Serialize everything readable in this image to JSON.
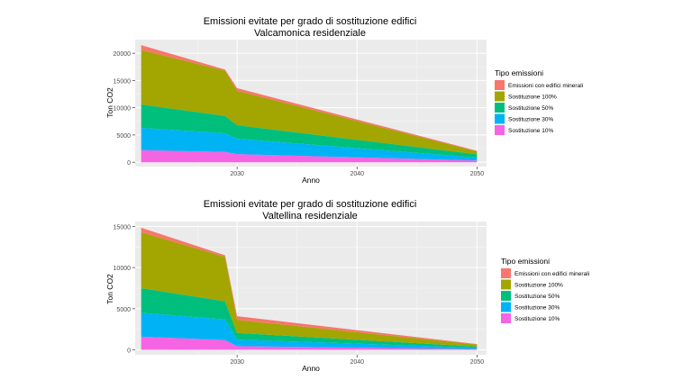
{
  "chart_data": [
    {
      "type": "area",
      "stacked": true,
      "title": "Emissioni evitate per grado di sostituzione edifici",
      "subtitle": "Valcamonica residenziale",
      "xlabel": "Anno",
      "ylabel": "Ton CO2",
      "xlim": [
        2021.5,
        2050.8
      ],
      "ylim": [
        -800,
        22500
      ],
      "x_ticks": [
        2030,
        2040,
        2050
      ],
      "y_ticks": [
        0,
        5000,
        10000,
        15000,
        20000
      ],
      "grid": true,
      "legend_title": "Tipo emissioni",
      "legend_position": "right",
      "x": [
        2022,
        2029,
        2030,
        2050
      ],
      "series": [
        {
          "name": "Sostituzione 10%",
          "color": "#F564E3",
          "values": [
            2200,
            1900,
            1500,
            300
          ]
        },
        {
          "name": "Sostituzione 30%",
          "color": "#00B3F5",
          "values": [
            4100,
            3400,
            2800,
            550
          ]
        },
        {
          "name": "Sostituzione 50%",
          "color": "#00BF7D",
          "values": [
            4300,
            3200,
            2500,
            600
          ]
        },
        {
          "name": "Sostituzione 100%",
          "color": "#A3A500",
          "values": [
            10000,
            8300,
            6300,
            550
          ]
        },
        {
          "name": "Emissioni con edifici minerali",
          "color": "#F8766D",
          "values": [
            900,
            200,
            500,
            100
          ]
        }
      ]
    },
    {
      "type": "area",
      "stacked": true,
      "title": "Emissioni evitate per grado di sostituzione edifici",
      "subtitle": "Valtellina residenziale",
      "xlabel": "Anno",
      "ylabel": "Ton CO2",
      "xlim": [
        2021.5,
        2050.8
      ],
      "ylim": [
        -600,
        15600
      ],
      "x_ticks": [
        2030,
        2040,
        2050
      ],
      "y_ticks": [
        0,
        5000,
        10000,
        15000
      ],
      "grid": true,
      "legend_title": "Tipo emissioni",
      "legend_position": "right",
      "x": [
        2022,
        2029,
        2030,
        2050
      ],
      "series": [
        {
          "name": "Sostituzione 10%",
          "color": "#F564E3",
          "values": [
            1600,
            1200,
            450,
            100
          ]
        },
        {
          "name": "Sostituzione 30%",
          "color": "#00B3F5",
          "values": [
            2900,
            2500,
            800,
            150
          ]
        },
        {
          "name": "Sostituzione 50%",
          "color": "#00BF7D",
          "values": [
            3000,
            2200,
            800,
            150
          ]
        },
        {
          "name": "Sostituzione 100%",
          "color": "#A3A500",
          "values": [
            6800,
            5400,
            1600,
            250
          ]
        },
        {
          "name": "Emissioni con edifici minerali",
          "color": "#F8766D",
          "values": [
            550,
            200,
            450,
            50
          ]
        }
      ]
    }
  ]
}
